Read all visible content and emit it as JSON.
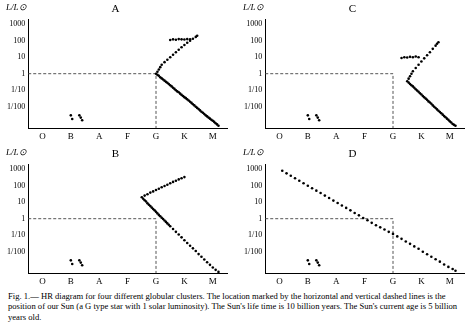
{
  "chart_data": [
    {
      "type": "scatter",
      "title": "A",
      "ylabel": "L/L⊙",
      "log": "y",
      "grid": false,
      "xlim": [
        -0.5,
        6.5
      ],
      "xticks": [
        {
          "value": 0,
          "label": "O"
        },
        {
          "value": 1,
          "label": "B"
        },
        {
          "value": 2,
          "label": "A"
        },
        {
          "value": 3,
          "label": "F"
        },
        {
          "value": 4,
          "label": "G"
        },
        {
          "value": 5,
          "label": "K"
        },
        {
          "value": 6,
          "label": "M"
        }
      ],
      "ylim": [
        0.0005,
        2000
      ],
      "yticks": [
        1000,
        100,
        10,
        1,
        {
          "value": 0.1,
          "label": "1/10"
        },
        {
          "value": 0.01,
          "label": "1/100"
        }
      ],
      "series": [
        {
          "type": "scatter",
          "marker": "circle",
          "color": "#000000",
          "x": [
            4.0,
            4.05,
            4.1,
            4.15,
            4.2,
            4.25,
            4.3,
            4.35,
            4.4,
            4.45,
            4.5,
            4.55,
            4.6,
            4.65,
            4.7,
            4.75,
            4.8,
            4.85,
            4.9,
            4.95,
            5.0,
            5.05,
            5.1,
            5.15,
            5.2,
            5.25,
            5.3,
            5.35,
            5.4,
            5.45,
            5.5,
            5.55,
            5.6,
            5.65,
            5.7,
            5.75,
            5.8,
            5.85,
            5.9,
            5.95,
            6.0,
            6.05,
            6.1,
            6.15,
            6.2
          ],
          "values": [
            1.0,
            0.85,
            0.75,
            0.6,
            0.52,
            0.45,
            0.38,
            0.32,
            0.28,
            0.24,
            0.2,
            0.17,
            0.14,
            0.12,
            0.1,
            0.085,
            0.075,
            0.062,
            0.052,
            0.045,
            0.038,
            0.033,
            0.028,
            0.024,
            0.02,
            0.017,
            0.014,
            0.012,
            0.01,
            0.0085,
            0.0072,
            0.006,
            0.005,
            0.0043,
            0.0036,
            0.003,
            0.0026,
            0.0022,
            0.0019,
            0.0016,
            0.0014,
            0.0012,
            0.001,
            0.00085,
            0.0007
          ]
        },
        {
          "type": "scatter",
          "marker": "circle",
          "color": "#000000",
          "x": [
            4.05,
            4.1,
            4.15,
            4.2,
            4.3,
            4.4,
            4.5,
            4.6,
            4.7,
            4.8,
            4.9,
            5.0,
            5.1,
            5.2,
            5.3,
            5.4,
            5.45
          ],
          "values": [
            1.3,
            1.8,
            2.5,
            3.5,
            5,
            7,
            10,
            14,
            20,
            28,
            40,
            55,
            75,
            100,
            130,
            170,
            200
          ]
        },
        {
          "type": "scatter",
          "marker": "circle",
          "color": "#000000",
          "x": [
            4.5,
            4.6,
            4.7,
            4.8,
            4.9,
            5.0,
            5.1,
            5.2
          ],
          "values": [
            110,
            120,
            115,
            125,
            120,
            118,
            125,
            120
          ]
        },
        {
          "type": "scatter",
          "marker": "circle",
          "color": "#000000",
          "x": [
            1.0,
            1.05,
            1.3,
            1.35,
            1.4
          ],
          "values": [
            0.003,
            0.0018,
            0.003,
            0.0022,
            0.0015
          ]
        },
        {
          "type": "line",
          "line_style": "dashed",
          "color": "#555555",
          "x": [
            -0.5,
            4,
            4
          ],
          "values": [
            1,
            1,
            0.0005
          ]
        }
      ]
    },
    {
      "type": "scatter",
      "title": "C",
      "ylabel": "L/L⊙",
      "log": "y",
      "grid": false,
      "xlim": [
        -0.5,
        6.5
      ],
      "xticks": [
        {
          "value": 0,
          "label": "O"
        },
        {
          "value": 1,
          "label": "B"
        },
        {
          "value": 2,
          "label": "A"
        },
        {
          "value": 3,
          "label": "F"
        },
        {
          "value": 4,
          "label": "G"
        },
        {
          "value": 5,
          "label": "K"
        },
        {
          "value": 6,
          "label": "M"
        }
      ],
      "ylim": [
        0.0005,
        2000
      ],
      "yticks": [
        1000,
        100,
        10,
        1,
        {
          "value": 0.1,
          "label": "1/10"
        },
        {
          "value": 0.01,
          "label": "1/100"
        }
      ],
      "series": [
        {
          "type": "scatter",
          "marker": "circle",
          "color": "#000000",
          "x": [
            4.5,
            4.55,
            4.6,
            4.65,
            4.7,
            4.75,
            4.8,
            4.85,
            4.9,
            4.95,
            5.0,
            5.05,
            5.1,
            5.15,
            5.2,
            5.25,
            5.3,
            5.35,
            5.4,
            5.45,
            5.5,
            5.55,
            5.6,
            5.65,
            5.7,
            5.75,
            5.8,
            5.85,
            5.9,
            5.95,
            6.0,
            6.05,
            6.1,
            6.15,
            6.2
          ],
          "values": [
            0.35,
            0.29,
            0.24,
            0.2,
            0.17,
            0.14,
            0.115,
            0.095,
            0.08,
            0.066,
            0.055,
            0.045,
            0.037,
            0.031,
            0.026,
            0.021,
            0.018,
            0.015,
            0.012,
            0.01,
            0.0083,
            0.0069,
            0.0057,
            0.0048,
            0.004,
            0.0033,
            0.0027,
            0.0023,
            0.0019,
            0.0016,
            0.0013,
            0.0011,
            0.0009,
            0.0008,
            0.0007
          ]
        },
        {
          "type": "scatter",
          "marker": "circle",
          "color": "#000000",
          "x": [
            4.55,
            4.6,
            4.65,
            4.7,
            4.8,
            4.9,
            5.0,
            5.1,
            5.2,
            5.3,
            5.4,
            5.5,
            5.55,
            5.6
          ],
          "values": [
            0.5,
            0.7,
            1.0,
            1.4,
            2.2,
            3.5,
            5.5,
            8.5,
            13,
            20,
            32,
            50,
            65,
            80
          ]
        },
        {
          "type": "scatter",
          "marker": "circle",
          "color": "#000000",
          "x": [
            4.3,
            4.4,
            4.5,
            4.6,
            4.7,
            4.8,
            4.9
          ],
          "values": [
            9,
            10,
            9.5,
            10.5,
            10,
            11,
            10
          ]
        },
        {
          "type": "scatter",
          "marker": "circle",
          "color": "#000000",
          "x": [
            1.0,
            1.05,
            1.3,
            1.35,
            1.4
          ],
          "values": [
            0.003,
            0.0018,
            0.003,
            0.0022,
            0.0015
          ]
        },
        {
          "type": "line",
          "line_style": "dashed",
          "color": "#555555",
          "x": [
            -0.5,
            4,
            4
          ],
          "values": [
            1,
            1,
            0.0005
          ]
        }
      ]
    },
    {
      "type": "scatter",
      "title": "B",
      "ylabel": "L/L⊙",
      "log": "y",
      "grid": false,
      "xlim": [
        -0.5,
        6.5
      ],
      "xticks": [
        {
          "value": 0,
          "label": "O"
        },
        {
          "value": 1,
          "label": "B"
        },
        {
          "value": 2,
          "label": "A"
        },
        {
          "value": 3,
          "label": "F"
        },
        {
          "value": 4,
          "label": "G"
        },
        {
          "value": 5,
          "label": "K"
        },
        {
          "value": 6,
          "label": "M"
        }
      ],
      "ylim": [
        0.0005,
        2000
      ],
      "yticks": [
        1000,
        100,
        10,
        1,
        {
          "value": 0.1,
          "label": "1/10"
        },
        {
          "value": 0.01,
          "label": "1/100"
        }
      ],
      "series": [
        {
          "type": "scatter",
          "marker": "circle",
          "color": "#000000",
          "x": [
            3.5,
            3.55,
            3.6,
            3.65,
            3.7,
            3.75,
            3.8,
            3.85,
            3.9,
            3.95,
            4.0,
            4.05,
            4.1,
            4.15,
            4.2,
            4.25,
            4.3,
            4.35,
            4.4,
            4.45,
            4.5,
            4.6,
            4.7,
            4.8,
            4.9,
            5.0,
            5.1,
            5.2,
            5.3,
            5.4,
            5.5,
            5.6,
            5.7,
            5.8,
            5.9,
            6.0,
            6.1,
            6.2
          ],
          "values": [
            20,
            16,
            13,
            11,
            8.5,
            7,
            5.8,
            4.7,
            3.9,
            3.2,
            2.6,
            2.1,
            1.7,
            1.4,
            1.15,
            0.95,
            0.78,
            0.64,
            0.52,
            0.43,
            0.35,
            0.24,
            0.16,
            0.11,
            0.074,
            0.05,
            0.034,
            0.023,
            0.016,
            0.011,
            0.0072,
            0.005,
            0.0034,
            0.0023,
            0.0016,
            0.0011,
            0.0008,
            0.0006
          ]
        },
        {
          "type": "scatter",
          "marker": "circle",
          "color": "#000000",
          "x": [
            3.6,
            3.7,
            3.8,
            3.9,
            4.0,
            4.1,
            4.2,
            4.3,
            4.4,
            4.5,
            4.6,
            4.7,
            4.8,
            4.9,
            5.0
          ],
          "values": [
            25,
            30,
            38,
            45,
            55,
            65,
            80,
            95,
            115,
            140,
            170,
            200,
            240,
            280,
            330
          ]
        },
        {
          "type": "scatter",
          "marker": "circle",
          "color": "#000000",
          "x": [
            1.0,
            1.05,
            1.3,
            1.35,
            1.4
          ],
          "values": [
            0.003,
            0.0018,
            0.003,
            0.0022,
            0.0015
          ]
        },
        {
          "type": "line",
          "line_style": "dashed",
          "color": "#555555",
          "x": [
            -0.5,
            4,
            4
          ],
          "values": [
            1,
            1,
            0.0005
          ]
        }
      ]
    },
    {
      "type": "scatter",
      "title": "D",
      "ylabel": "L/L⊙",
      "log": "y",
      "grid": false,
      "xlim": [
        -0.5,
        6.5
      ],
      "xticks": [
        {
          "value": 0,
          "label": "O"
        },
        {
          "value": 1,
          "label": "B"
        },
        {
          "value": 2,
          "label": "A"
        },
        {
          "value": 3,
          "label": "F"
        },
        {
          "value": 4,
          "label": "G"
        },
        {
          "value": 5,
          "label": "K"
        },
        {
          "value": 6,
          "label": "M"
        }
      ],
      "ylim": [
        0.0005,
        2000
      ],
      "yticks": [
        1000,
        100,
        10,
        1,
        {
          "value": 0.1,
          "label": "1/10"
        },
        {
          "value": 0.01,
          "label": "1/100"
        }
      ],
      "series": [
        {
          "type": "scatter",
          "marker": "circle",
          "color": "#000000",
          "x": [
            0.1,
            0.25,
            0.4,
            0.55,
            0.7,
            0.85,
            1.0,
            1.15,
            1.3,
            1.45,
            1.6,
            1.75,
            1.9,
            2.05,
            2.2,
            2.35,
            2.5,
            2.65,
            2.8,
            2.95,
            3.1,
            3.25,
            3.4,
            3.55,
            3.7,
            3.85,
            4.0,
            4.15,
            4.3,
            4.45,
            4.6,
            4.75,
            4.9,
            5.05,
            5.2,
            5.35,
            5.5,
            5.65,
            5.8,
            5.95,
            6.1,
            6.2
          ],
          "values": [
            800,
            560,
            400,
            280,
            200,
            140,
            100,
            70,
            50,
            36,
            25,
            18,
            12.5,
            9,
            6.3,
            4.5,
            3.2,
            2.2,
            1.6,
            1.1,
            0.8,
            0.56,
            0.4,
            0.3,
            0.22,
            0.16,
            0.12,
            0.085,
            0.06,
            0.042,
            0.03,
            0.021,
            0.015,
            0.01,
            0.007,
            0.005,
            0.0035,
            0.0025,
            0.0017,
            0.0012,
            0.0009,
            0.0007
          ]
        },
        {
          "type": "scatter",
          "marker": "circle",
          "color": "#000000",
          "x": [
            1.0,
            1.05,
            1.3,
            1.35,
            1.4
          ],
          "values": [
            0.003,
            0.0018,
            0.003,
            0.0022,
            0.0015
          ]
        },
        {
          "type": "line",
          "line_style": "dashed",
          "color": "#555555",
          "x": [
            -0.5,
            4,
            4
          ],
          "values": [
            1,
            1,
            0.0005
          ]
        }
      ]
    }
  ],
  "caption": "Fig. 1.— HR diagram for four different globular clusters. The location marked by the horizontal and vertical dashed lines is the position of our Sun (a G type star with 1 solar luminosity). The Sun's life time is 10 billion years. The Sun's current age is 5 billion years old."
}
